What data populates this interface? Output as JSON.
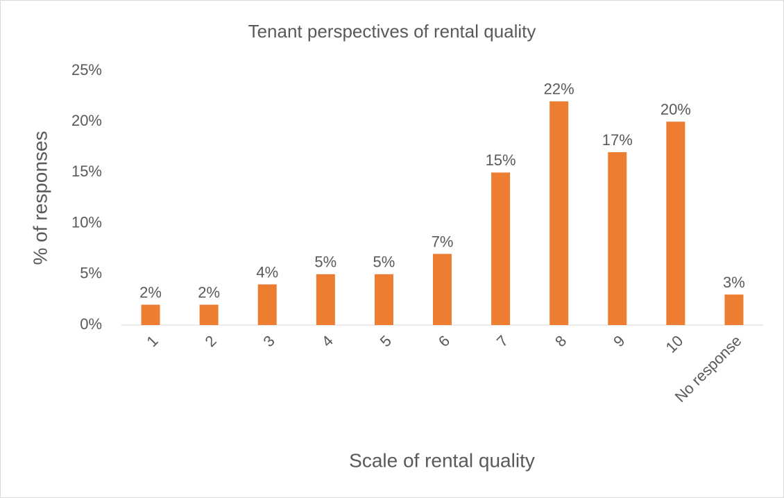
{
  "chart_data": {
    "type": "bar",
    "title": "Tenant perspectives of rental quality",
    "x_label": "Scale of rental quality",
    "y_label": "% of responses",
    "categories": [
      "1",
      "2",
      "3",
      "4",
      "5",
      "6",
      "7",
      "8",
      "9",
      "10",
      "No response"
    ],
    "values": [
      2,
      2,
      4,
      5,
      5,
      7,
      15,
      22,
      17,
      20,
      3
    ],
    "value_labels": [
      "2%",
      "2%",
      "4%",
      "5%",
      "5%",
      "7%",
      "15%",
      "22%",
      "17%",
      "20%",
      "3%"
    ],
    "color": "#ed7d31",
    "ylim": [
      0,
      25
    ],
    "yticks": [
      {
        "value": 0,
        "label": "0%"
      },
      {
        "value": 5,
        "label": "5%"
      },
      {
        "value": 10,
        "label": "10%"
      },
      {
        "value": 15,
        "label": "15%"
      },
      {
        "value": 20,
        "label": "20%"
      },
      {
        "value": 25,
        "label": "25%"
      }
    ],
    "grid": false
  }
}
